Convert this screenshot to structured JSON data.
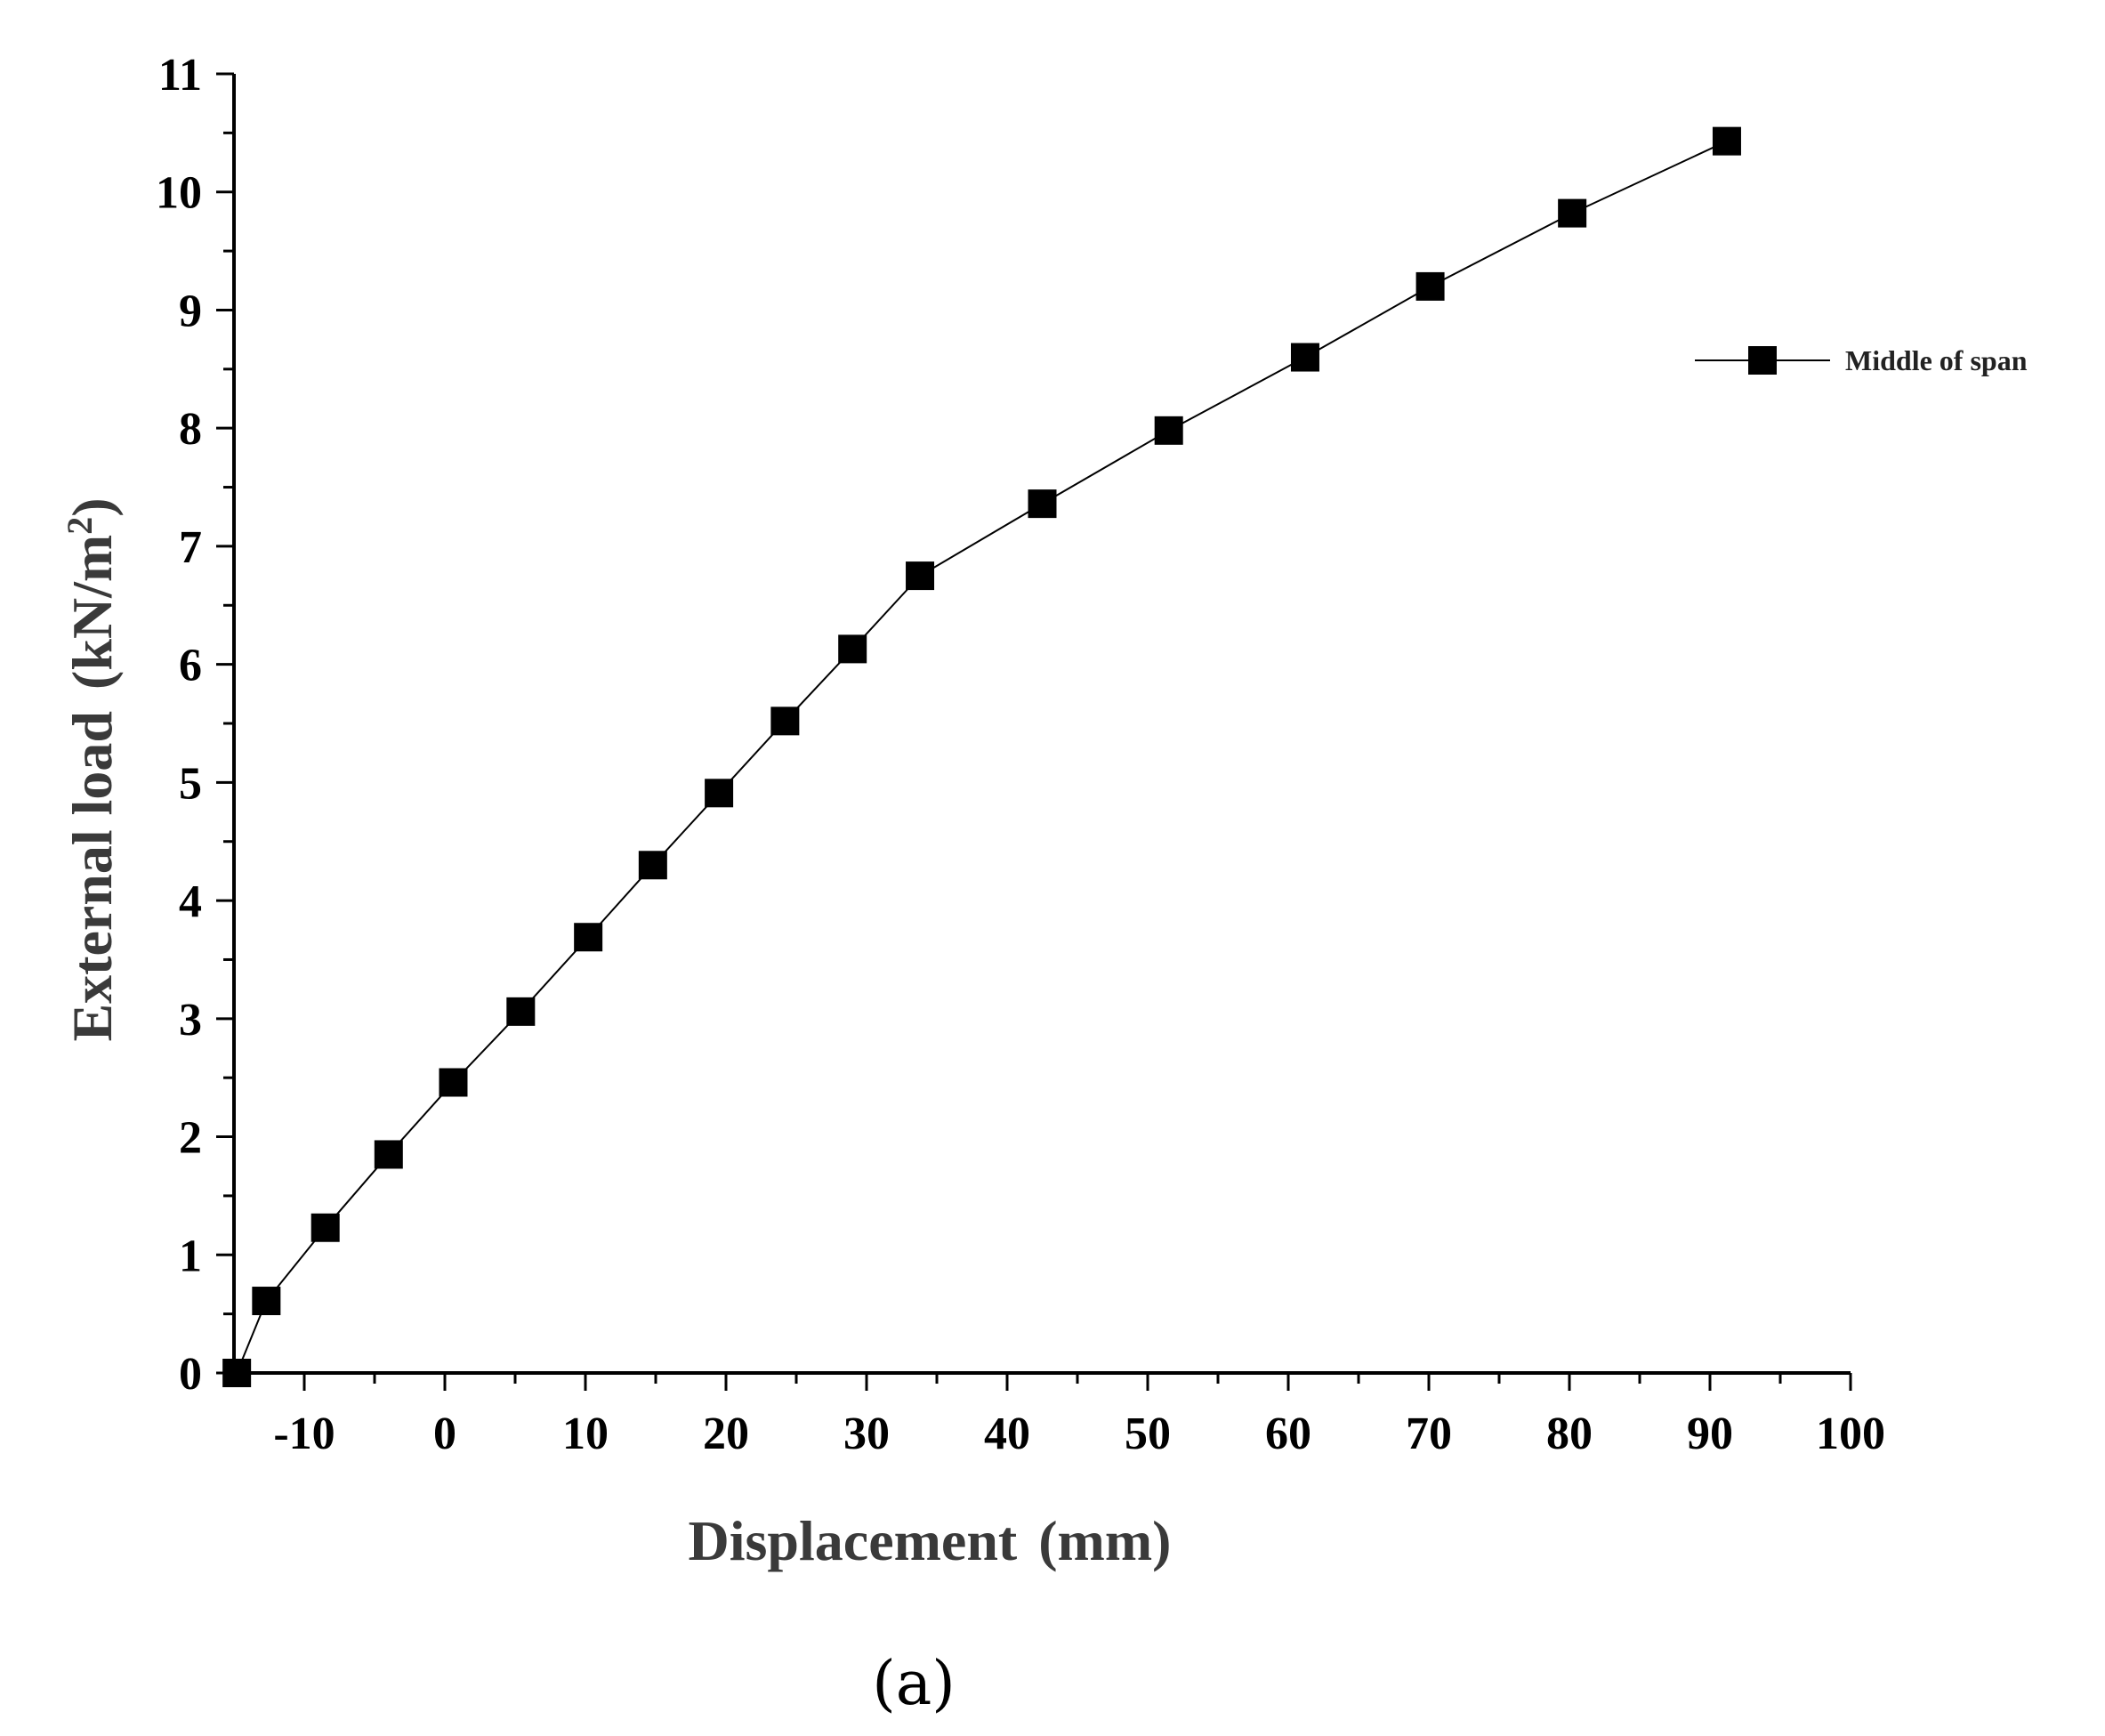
{
  "chart_data": {
    "type": "line",
    "title": "",
    "xlabel": "Displacement",
    "xlabel_unit": "(mm)",
    "ylabel": "External load",
    "ylabel_unit_base": "(kN/m",
    "ylabel_unit_sup": "2",
    "ylabel_unit_close": ")",
    "xlim": [
      -15,
      100
    ],
    "ylim": [
      0,
      11
    ],
    "xticks": [
      -10,
      0,
      10,
      20,
      30,
      40,
      50,
      60,
      70,
      80,
      90,
      100
    ],
    "xtick_labels": [
      "-10",
      "0",
      "10",
      "20",
      "30",
      "40",
      "50",
      "60",
      "70",
      "80",
      "90",
      "100"
    ],
    "yticks": [
      0,
      1,
      2,
      3,
      4,
      5,
      6,
      7,
      8,
      9,
      10,
      11
    ],
    "ytick_labels": [
      "0",
      "1",
      "2",
      "3",
      "4",
      "5",
      "6",
      "7",
      "8",
      "9",
      "10",
      "11"
    ],
    "grid": false,
    "legend_position": "right",
    "series": [
      {
        "name": "Middle of span",
        "marker": "square",
        "color": "#000000",
        "x": [
          -14.8,
          -12.7,
          -8.5,
          -4.0,
          0.6,
          5.4,
          10.2,
          14.8,
          19.5,
          24.2,
          29.0,
          33.8,
          42.5,
          51.5,
          61.2,
          70.1,
          80.2,
          91.2
        ],
        "y": [
          0.0,
          0.61,
          1.23,
          1.85,
          2.46,
          3.06,
          3.69,
          4.3,
          4.91,
          5.52,
          6.13,
          6.75,
          7.36,
          7.98,
          8.6,
          9.2,
          9.82,
          10.43
        ]
      }
    ]
  },
  "caption": "(a)"
}
